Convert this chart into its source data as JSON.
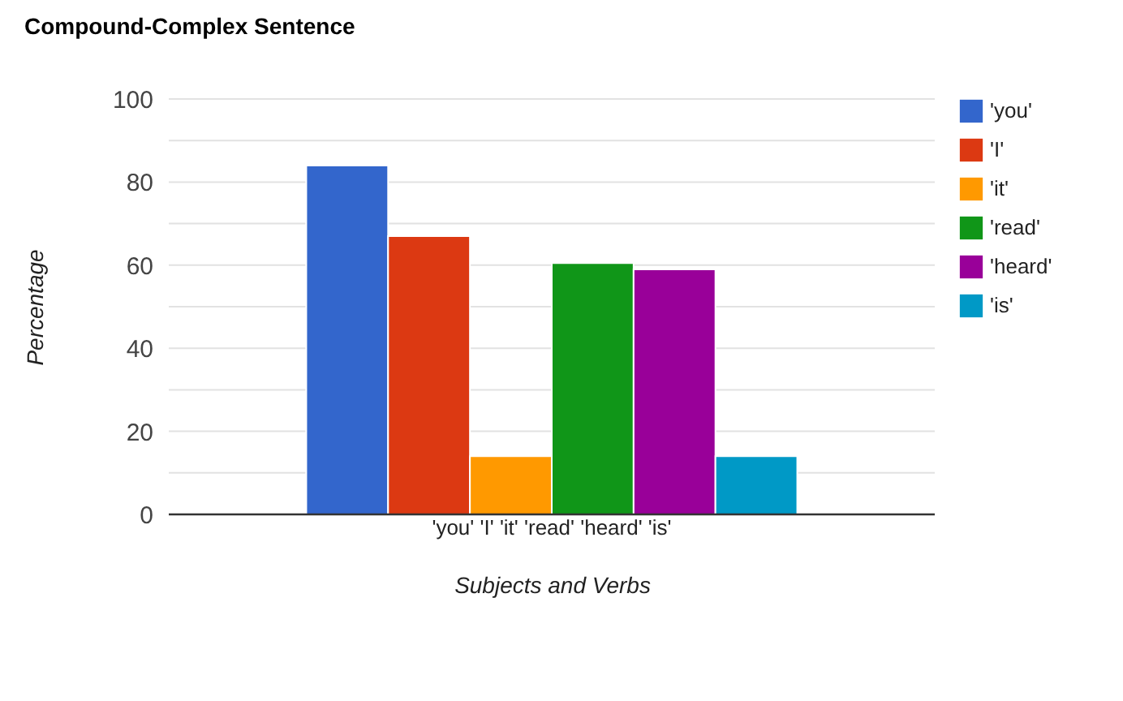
{
  "chart_data": {
    "type": "bar",
    "title": "Compound-Complex Sentence",
    "xlabel": "Subjects and Verbs",
    "ylabel": "Percentage",
    "categories": [
      "'you' 'I' 'it' 'read' 'heard' 'is'"
    ],
    "series": [
      {
        "name": "'you'",
        "color": "#3366cc",
        "values": [
          84
        ]
      },
      {
        "name": "'I'",
        "color": "#dc3912",
        "values": [
          67
        ]
      },
      {
        "name": "'it'",
        "color": "#ff9900",
        "values": [
          14
        ]
      },
      {
        "name": "'read'",
        "color": "#109618",
        "values": [
          60.5
        ]
      },
      {
        "name": "'heard'",
        "color": "#990099",
        "values": [
          59
        ]
      },
      {
        "name": "'is'",
        "color": "#0099c6",
        "values": [
          14
        ]
      }
    ],
    "ylim": [
      0,
      100
    ],
    "yticks": [
      0,
      {
        "value": 10,
        "label": null
      },
      20,
      {
        "value": 30,
        "label": null
      },
      40,
      {
        "value": 50,
        "label": null
      },
      60,
      {
        "value": 70,
        "label": null
      },
      80,
      {
        "value": 90,
        "label": null
      },
      100
    ],
    "grid": "y",
    "legend": "top right"
  }
}
